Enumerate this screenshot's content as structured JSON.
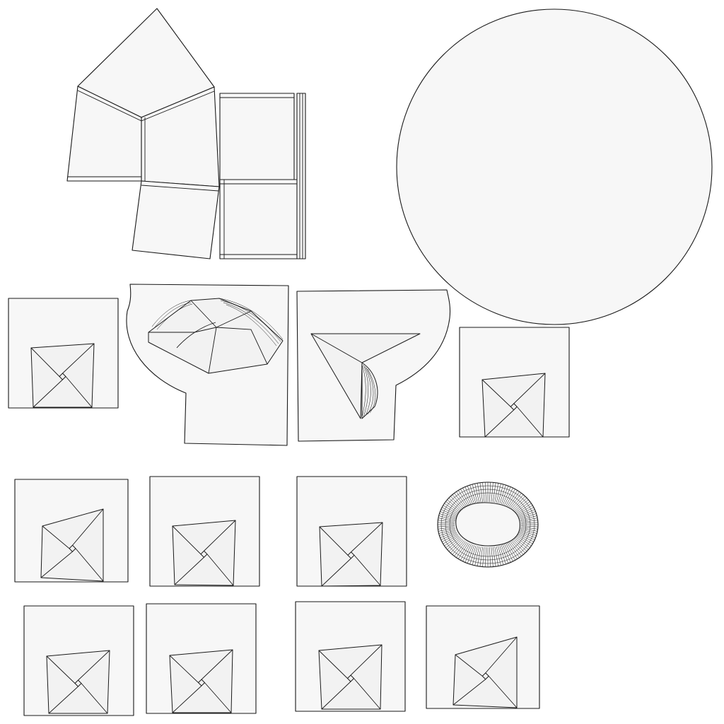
{
  "colors": {
    "background": "#ffffff",
    "panel_fill": "#f7f7f7",
    "inner_fill": "#f2f2f2",
    "stroke": "#1a1a1a"
  },
  "uv_islands": [
    "cube-net-island",
    "circle-island",
    "cap-island-left",
    "cap-island-right",
    "ring-island",
    "quad-tile-island"
  ]
}
